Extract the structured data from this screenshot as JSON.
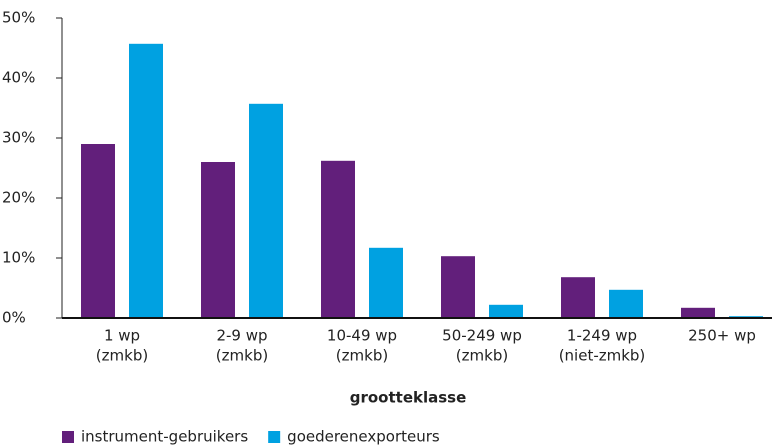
{
  "chart_data": {
    "type": "bar",
    "categories": [
      [
        "1 wp",
        "(zmkb)"
      ],
      [
        "2-9 wp",
        "(zmkb)"
      ],
      [
        "10-49 wp",
        "(zmkb)"
      ],
      [
        "50-249 wp",
        "(zmkb)"
      ],
      [
        "1-249 wp",
        "(niet-zmkb)"
      ],
      [
        "250+ wp"
      ]
    ],
    "series": [
      {
        "name": "instrument-gebruikers",
        "color": "#621f7b",
        "values": [
          29,
          26,
          26.2,
          10.3,
          6.8,
          1.7
        ]
      },
      {
        "name": "goederenexporteurs",
        "color": "#00a1e1",
        "values": [
          45.7,
          35.7,
          11.7,
          2.2,
          4.7,
          0.3
        ]
      }
    ],
    "x_label": "grootteklasse",
    "ylim": [
      0,
      50
    ],
    "yticks": [
      {
        "value": 0,
        "label": "0%"
      },
      {
        "value": 10,
        "label": "10%"
      },
      {
        "value": 20,
        "label": "20%"
      },
      {
        "value": 30,
        "label": "30%"
      },
      {
        "value": 40,
        "label": "40%"
      },
      {
        "value": 50,
        "label": "50%"
      }
    ],
    "legend": "bottom-left"
  }
}
